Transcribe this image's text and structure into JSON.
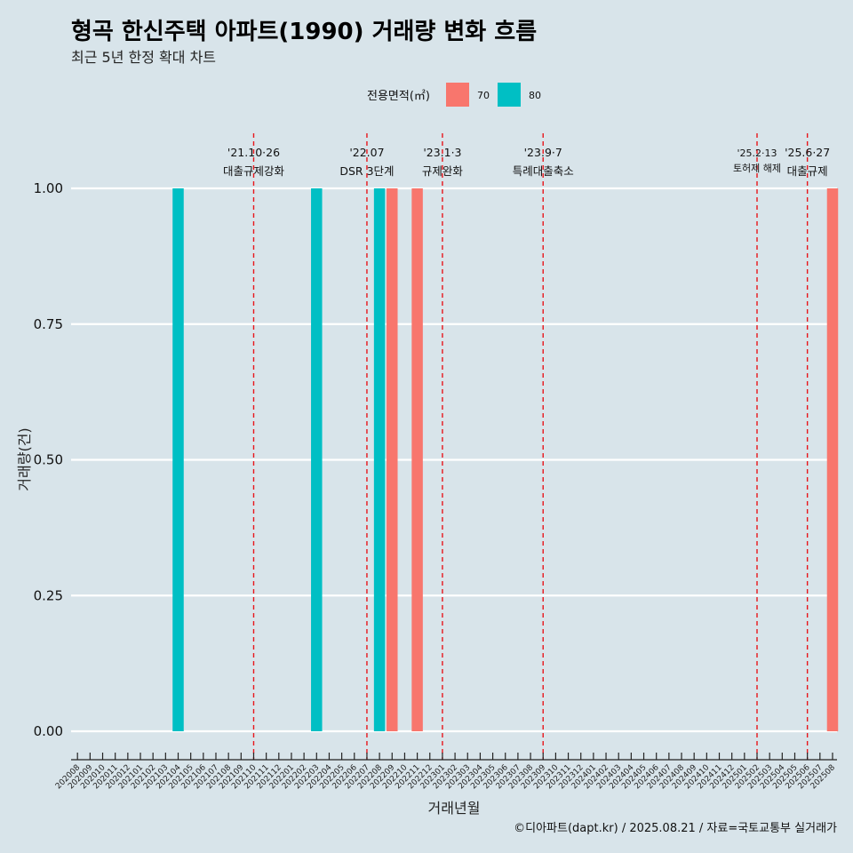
{
  "title": "형곡 한신주택 아파트(1990) 거래량 변화 흐름",
  "subtitle": "최근 5년 한정 확대 차트",
  "caption": "©디아파트(dapt.kr) / 2025.08.21 / 자료=국토교통부 실거래가",
  "chart_data": {
    "type": "bar",
    "xlabel": "거래년월",
    "ylabel": "거래량(건)",
    "ylim": [
      0,
      1
    ],
    "yticks": [
      "0.00",
      "0.25",
      "0.50",
      "0.75",
      "1.00"
    ],
    "grid": true,
    "legend_title": "전용면적(㎡)",
    "legend_position": "top",
    "categories": [
      "202008",
      "202009",
      "202010",
      "202011",
      "202012",
      "202101",
      "202102",
      "202103",
      "202104",
      "202105",
      "202106",
      "202107",
      "202108",
      "202109",
      "202110",
      "202111",
      "202112",
      "202201",
      "202202",
      "202203",
      "202204",
      "202205",
      "202206",
      "202207",
      "202208",
      "202209",
      "202210",
      "202211",
      "202212",
      "202301",
      "202302",
      "202303",
      "202304",
      "202305",
      "202306",
      "202307",
      "202308",
      "202309",
      "202310",
      "202311",
      "202312",
      "202401",
      "202402",
      "202403",
      "202404",
      "202405",
      "202406",
      "202407",
      "202408",
      "202409",
      "202410",
      "202411",
      "202412",
      "202501",
      "202502",
      "202503",
      "202504",
      "202505",
      "202506",
      "202507",
      "202508"
    ],
    "series": [
      {
        "name": "70",
        "color": "#F8766D",
        "points": [
          {
            "x": "202209",
            "y": 1
          },
          {
            "x": "202211",
            "y": 1
          },
          {
            "x": "202508",
            "y": 1
          }
        ]
      },
      {
        "name": "80",
        "color": "#00BFC4",
        "points": [
          {
            "x": "202104",
            "y": 1
          },
          {
            "x": "202203",
            "y": 1
          },
          {
            "x": "202208",
            "y": 1
          }
        ]
      }
    ],
    "events": [
      {
        "x": "202110",
        "date": "'21.10·26",
        "label": "대출규제강화"
      },
      {
        "x": "202207",
        "date": "'22.07",
        "label": "DSR 3단계"
      },
      {
        "x": "202301",
        "date": "'23.1·3",
        "label": "규제완화"
      },
      {
        "x": "202309",
        "date": "'23.9·7",
        "label": "특례대출축소"
      },
      {
        "x": "202502",
        "date": "'25.2·13",
        "label": "토허제 해제",
        "small": true
      },
      {
        "x": "202506",
        "date": "'25.6·27",
        "label": "대출규제"
      }
    ]
  }
}
